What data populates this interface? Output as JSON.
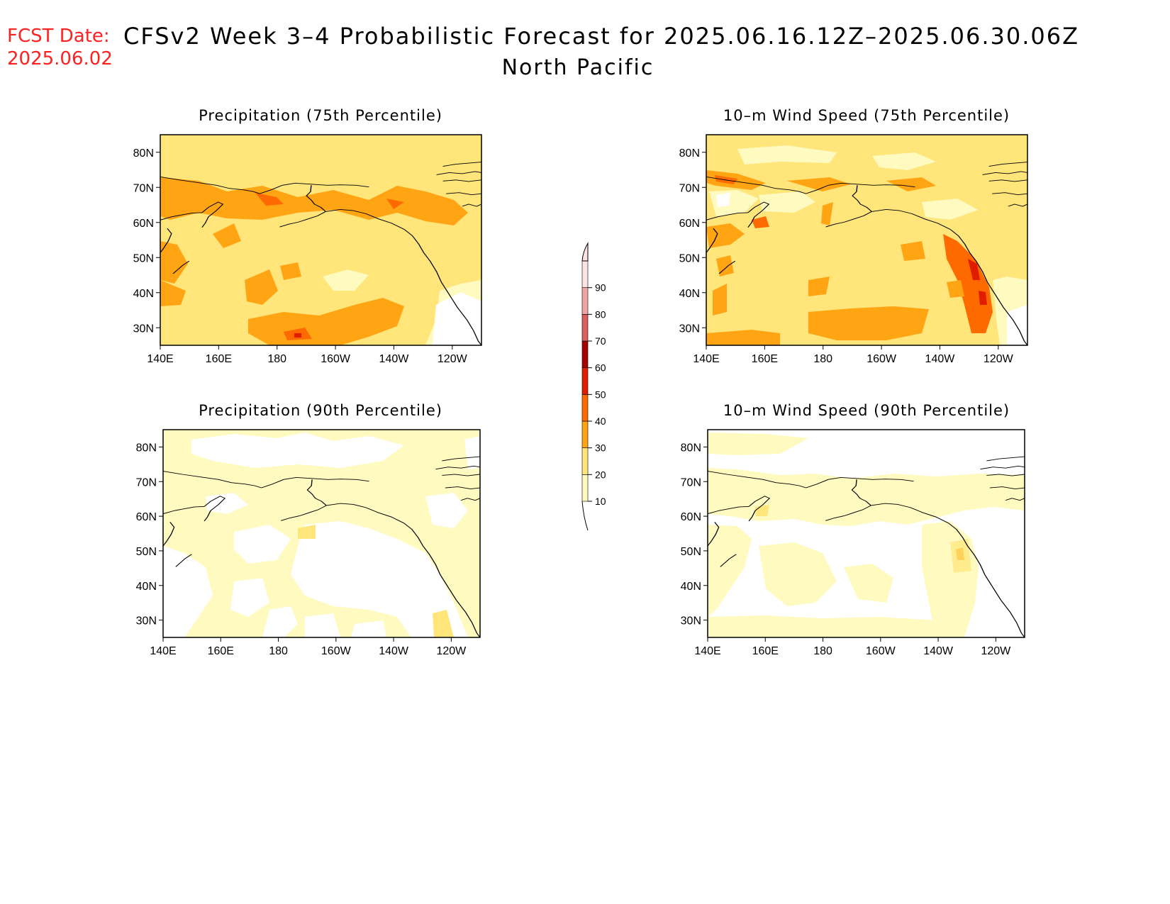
{
  "header": {
    "fcst_label": "FCST Date:",
    "fcst_date": "2025.06.02",
    "title": "CFSv2 Week 3–4 Probabilistic Forecast for 2025.06.16.12Z–2025.06.30.06Z",
    "subtitle": "North Pacific"
  },
  "map": {
    "lon_labels": [
      "140E",
      "160E",
      "180",
      "160W",
      "140W",
      "120W"
    ],
    "lat_labels": [
      "80N",
      "70N",
      "60N",
      "50N",
      "40N",
      "30N"
    ],
    "lon_range": [
      "140E",
      "110W"
    ],
    "lat_range": [
      "25N",
      "85N"
    ]
  },
  "panels": [
    {
      "id": "precip75",
      "title": "Precipitation (75th Percentile)",
      "base_level": 20,
      "regions": [
        {
          "desc": "Arctic coast band",
          "level": 30
        },
        {
          "desc": "Bering Sea",
          "level": 40
        },
        {
          "desc": "central Pacific near 30N",
          "level": 30
        },
        {
          "desc": "subtropical band near 27N 175W",
          "level": 40
        },
        {
          "desc": "coastal California",
          "level": 0
        }
      ]
    },
    {
      "id": "wind75",
      "title": "10–m Wind Speed (75th Percentile)",
      "base_level": 20,
      "regions": [
        {
          "desc": "northeast Pacific band near 30N",
          "level": 30
        },
        {
          "desc": "Pacific Northwest coast",
          "level": 40
        },
        {
          "desc": "Oregon coast max",
          "level": 50
        },
        {
          "desc": "northern waters",
          "level": 10
        }
      ]
    },
    {
      "id": "precip90",
      "title": "Precipitation (90th Percentile)",
      "base_level": 10,
      "regions": [
        {
          "desc": "eastern subtropical Pacific",
          "level": 0
        },
        {
          "desc": "high Arctic",
          "level": 0
        }
      ]
    },
    {
      "id": "wind90",
      "title": "10–m Wind Speed (90th Percentile)",
      "base_level": 10,
      "regions": [
        {
          "desc": "central North Pacific",
          "level": 0
        },
        {
          "desc": "Gulf of Alaska",
          "level": 20
        }
      ]
    }
  ],
  "colorbar": {
    "levels": [
      "10",
      "20",
      "30",
      "40",
      "50",
      "60",
      "70",
      "80",
      "90"
    ],
    "colors": [
      "#fffac0",
      "#ffe57a",
      "#ffa514",
      "#ff6a00",
      "#e11d00",
      "#a50000",
      "#dc5f5f",
      "#f2a3a3",
      "#fde2e2"
    ]
  },
  "colors": {
    "level_0": "#ffffff",
    "level_10": "#fffac0",
    "level_20": "#ffe57a",
    "level_30": "#ffa514",
    "level_40": "#ff6a00",
    "level_50": "#e11d00",
    "fcst_text": "#ff2020"
  }
}
